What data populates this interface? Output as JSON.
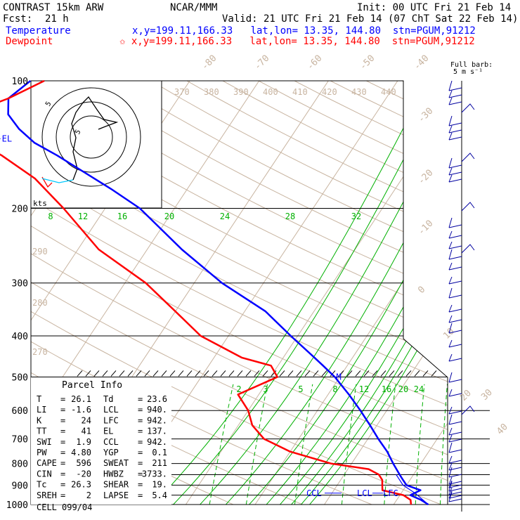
{
  "header": {
    "model": "CONTRAST 15km ARW",
    "center": "NCAR/MMM",
    "init": "Init: 00 UTC Fri 21 Feb 14",
    "fcst_label": "Fcst:",
    "fcst_value": "21 h",
    "valid": "Valid: 21 UTC Fri 21 Feb 14 (07 ChT Sat 22 Feb 14)",
    "temp_label": "Temperature",
    "temp_info": "x,y=199.11,166.33   lat,lon= 13.35, 144.80  stn=PGUM,91212",
    "dew_label": "Dewpoint",
    "dew_info": "✩ x,y=199.11,166.33   lat,lon= 13.35, 144.80  stn=PGUM,91212"
  },
  "barb_legend": {
    "line1": "Full barb:",
    "line2": "5 m s⁻¹"
  },
  "colors": {
    "temperature": "#0000ff",
    "dewpoint": "#ff0000",
    "mixing_ratio": "#00b000",
    "theta": "#c8b4a0",
    "grid": "#000000",
    "barbs": "#0000a0"
  },
  "chart_data": {
    "type": "line",
    "subtype": "skew-t log-p",
    "pressure_levels": [
      100,
      200,
      300,
      400,
      500,
      600,
      700,
      800,
      900,
      1000
    ],
    "x_axis_temperatures": [
      -80,
      -70,
      -60,
      -50,
      -40,
      -30,
      -20,
      -10,
      0,
      10,
      20,
      30,
      40
    ],
    "theta_labels": [
      370,
      380,
      390,
      400,
      410,
      420,
      430,
      440
    ],
    "theta_left_labels": [
      290,
      280,
      270
    ],
    "mixing_ratio_upper_labels": [
      8,
      12,
      16,
      20,
      24,
      28,
      32
    ],
    "mixing_ratio_lower_labels": [
      2,
      3,
      5,
      8,
      12,
      16,
      20,
      24
    ],
    "el_label": "EL",
    "m_label": "M",
    "ccl_label": "CCL",
    "lcl_label": "LCL",
    "lfc_label": "LFC",
    "series": [
      {
        "name": "Temperature",
        "color": "#0000ff",
        "points": [
          [
            1000,
            25.0
          ],
          [
            975,
            23.5
          ],
          [
            950,
            21.5
          ],
          [
            925,
            22.5
          ],
          [
            900,
            20.0
          ],
          [
            875,
            19.0
          ],
          [
            850,
            18.0
          ],
          [
            800,
            16.0
          ],
          [
            750,
            14.0
          ],
          [
            700,
            11.5
          ],
          [
            650,
            9.0
          ],
          [
            600,
            6.2
          ],
          [
            550,
            3.0
          ],
          [
            500,
            -0.7
          ],
          [
            470,
            -3.5
          ],
          [
            450,
            -5.5
          ],
          [
            400,
            -11.0
          ],
          [
            350,
            -17.0
          ],
          [
            300,
            -26.0
          ],
          [
            250,
            -35.0
          ],
          [
            200,
            -45.0
          ],
          [
            180,
            -51.0
          ],
          [
            150,
            -62.0
          ],
          [
            140,
            -66.5
          ],
          [
            130,
            -70.0
          ],
          [
            120,
            -73.0
          ],
          [
            110,
            -74.5
          ],
          [
            100,
            -73.0
          ]
        ]
      },
      {
        "name": "Dewpoint",
        "color": "#ff0000",
        "points": [
          [
            1000,
            22.5
          ],
          [
            975,
            22.0
          ],
          [
            950,
            20.5
          ],
          [
            925,
            17.0
          ],
          [
            900,
            16.5
          ],
          [
            875,
            16.0
          ],
          [
            850,
            15.0
          ],
          [
            825,
            13.0
          ],
          [
            800,
            7.0
          ],
          [
            750,
            0.0
          ],
          [
            700,
            -5.0
          ],
          [
            650,
            -8.0
          ],
          [
            600,
            -10.0
          ],
          [
            550,
            -13.0
          ],
          [
            500,
            -9.0
          ],
          [
            470,
            -11.0
          ],
          [
            450,
            -16.0
          ],
          [
            400,
            -24.0
          ],
          [
            350,
            -30.0
          ],
          [
            300,
            -37.0
          ],
          [
            250,
            -47.0
          ],
          [
            200,
            -56.0
          ],
          [
            170,
            -63.0
          ],
          [
            150,
            -70.0
          ],
          [
            140,
            -74.5
          ],
          [
            130,
            -78.0
          ],
          [
            120,
            -79.0
          ],
          [
            110,
            -74.5
          ],
          [
            100,
            -71.0
          ]
        ]
      }
    ]
  },
  "hodograph": {
    "units_label": "kts",
    "ring_label_1": "5",
    "ring_label_2": "5"
  },
  "parcel_info": {
    "title": "Parcel Info",
    "rows": [
      {
        "k1": "T",
        "v1": "26.1",
        "k2": "Td",
        "v2": "23.6"
      },
      {
        "k1": "LI",
        "v1": "-1.6",
        "k2": "LCL",
        "v2": "940."
      },
      {
        "k1": "K",
        "v1": "24",
        "k2": "LFC",
        "v2": "942."
      },
      {
        "k1": "TT",
        "v1": "41",
        "k2": "EL",
        "v2": "137."
      },
      {
        "k1": "SWI",
        "v1": "1.9",
        "k2": "CCL",
        "v2": "942."
      },
      {
        "k1": "PW",
        "v1": "4.80",
        "k2": "YGP",
        "v2": "0.1"
      },
      {
        "k1": "CAPE",
        "v1": "596",
        "k2": "SWEAT",
        "v2": "211"
      },
      {
        "k1": "CIN",
        "v1": "-20",
        "k2": "HWBZ",
        "v2": "3733."
      },
      {
        "k1": "Tc",
        "v1": "26.3",
        "k2": "SHEAR",
        "v2": "19."
      },
      {
        "k1": "SREH",
        "v1": "2",
        "k2": "LAPSE",
        "v2": "5.4"
      }
    ],
    "cell_label": "CELL",
    "cell_value": "099/04"
  }
}
